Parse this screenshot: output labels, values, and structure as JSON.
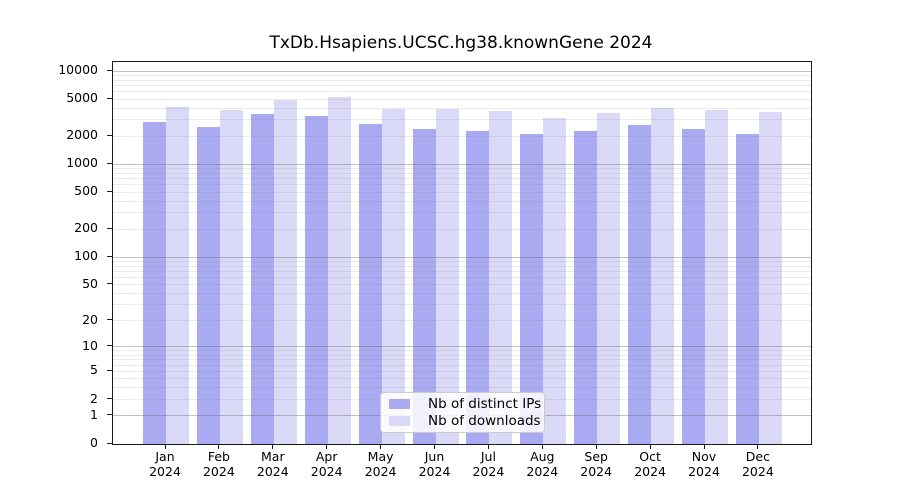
{
  "chart_data": {
    "type": "bar",
    "title": "TxDb.Hsapiens.UCSC.hg38.knownGene 2024",
    "categories": [
      "Jan",
      "Feb",
      "Mar",
      "Apr",
      "May",
      "Jun",
      "Jul",
      "Aug",
      "Sep",
      "Oct",
      "Nov",
      "Dec"
    ],
    "category_year": "2024",
    "series": [
      {
        "name": "Nb of distinct IPs",
        "color": "#aaaaf2",
        "values": [
          2860,
          2530,
          3470,
          3280,
          2680,
          2370,
          2270,
          2130,
          2270,
          2620,
          2370,
          2100
        ]
      },
      {
        "name": "Nb of downloads",
        "color": "#dadaf8",
        "values": [
          4130,
          3810,
          4930,
          5220,
          3920,
          3880,
          3700,
          3150,
          3520,
          4050,
          3780,
          3630
        ]
      }
    ],
    "yscale": "log1p",
    "ylim": [
      0,
      12500
    ],
    "yticks": [
      0,
      1,
      2,
      5,
      10,
      20,
      50,
      100,
      200,
      500,
      1000,
      2000,
      5000,
      10000
    ],
    "xlabel": "",
    "ylabel": "",
    "grid": true,
    "legend_position": "lower center",
    "colors": {
      "axis": "#1a1a1a",
      "grid_major": "#b0b0b0",
      "grid_minor": "#e4e4e4",
      "background": "#ffffff"
    }
  }
}
